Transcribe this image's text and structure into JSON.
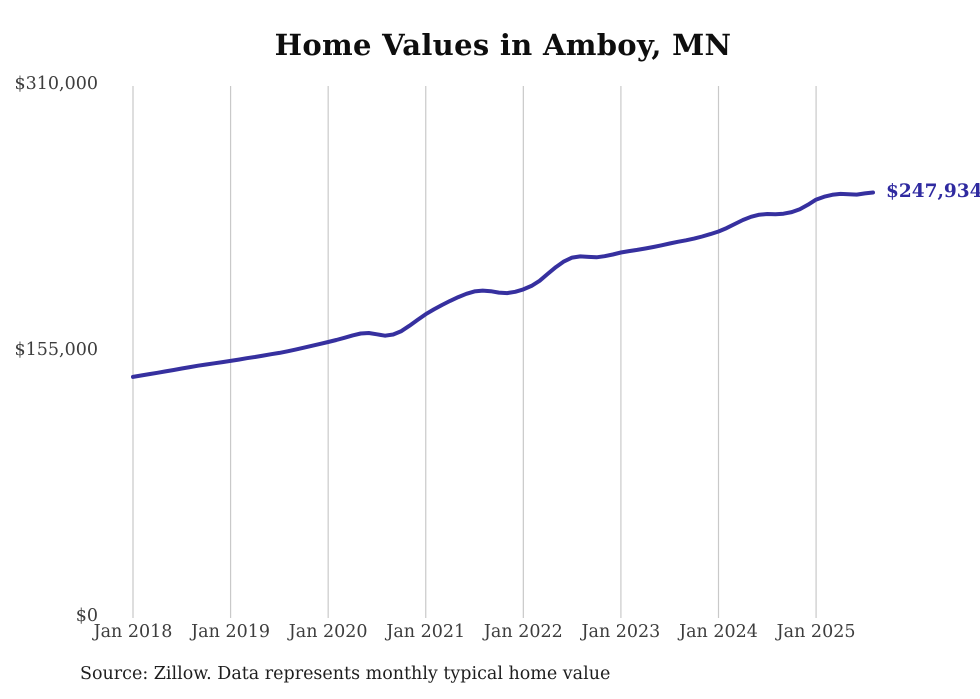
{
  "title": "Home Values in Amboy, MN",
  "source_note": "Source: Zillow. Data represents monthly typical home value",
  "end_label": "$247,934",
  "colors": {
    "line": "#36309f",
    "end_label_text": "#2f2aa0",
    "grid": "#c9c9c9",
    "axis_text": "#3d3d3d",
    "title_text": "#0e0e0e",
    "source_text": "#1e1e1e",
    "background": "#ffffff"
  },
  "chart_data": {
    "type": "line",
    "title": "Home Values in Amboy, MN",
    "xlabel": "",
    "ylabel": "",
    "legend": "none",
    "grid": "vertical-only",
    "ylim": [
      0,
      310000
    ],
    "y_ticks": [
      0,
      155000,
      310000
    ],
    "y_tick_labels": [
      "$0",
      "$155,000",
      "$310,000"
    ],
    "x_tick_labels": [
      "Jan 2018",
      "Jan 2019",
      "Jan 2020",
      "Jan 2021",
      "Jan 2022",
      "Jan 2023",
      "Jan 2024",
      "Jan 2025"
    ],
    "x_interval": "monthly",
    "x_first": "2018-01",
    "x_last": "2025-08",
    "final_value": 247934,
    "series": [
      {
        "name": "Typical home value",
        "values": [
          140500,
          141300,
          142100,
          142900,
          143700,
          144500,
          145400,
          146200,
          147000,
          147700,
          148400,
          149100,
          149800,
          150600,
          151400,
          152100,
          152900,
          153700,
          154500,
          155400,
          156400,
          157500,
          158600,
          159700,
          160800,
          162000,
          163300,
          164700,
          165800,
          166100,
          165300,
          164500,
          165200,
          167200,
          170300,
          173700,
          177000,
          179800,
          182400,
          184800,
          187000,
          188900,
          190300,
          190800,
          190400,
          189600,
          189300,
          190100,
          191500,
          193500,
          196500,
          200500,
          204500,
          207800,
          210000,
          210700,
          210400,
          210200,
          210800,
          211800,
          213000,
          213800,
          214500,
          215300,
          216200,
          217200,
          218200,
          219200,
          220100,
          221100,
          222300,
          223700,
          225200,
          227200,
          229600,
          231900,
          233800,
          235000,
          235400,
          235300,
          235600,
          236500,
          238200,
          240800,
          243800,
          245500,
          246600,
          247100,
          246900,
          246700,
          247400,
          247934
        ]
      }
    ]
  }
}
